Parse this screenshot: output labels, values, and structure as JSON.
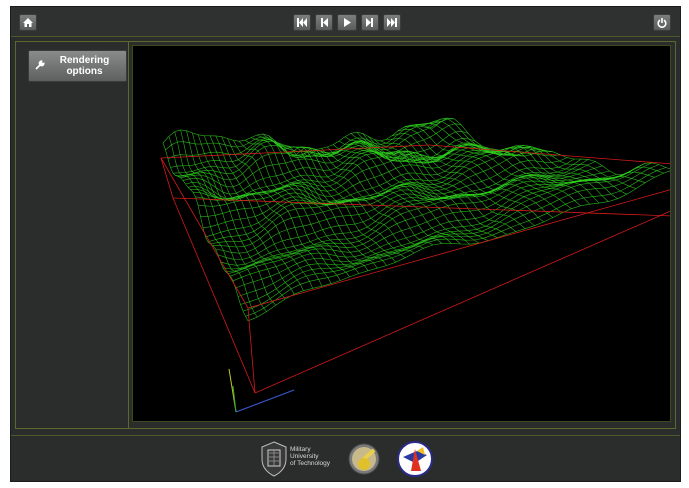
{
  "toolbar": {
    "home_icon": "home-icon",
    "transport": [
      "skip-to-start-icon",
      "step-back-icon",
      "play-icon",
      "step-forward-icon",
      "fast-forward-icon"
    ],
    "power_icon": "power-icon"
  },
  "sidebar": {
    "rendering_options_label": "Rendering\noptions"
  },
  "viewport": {
    "background": "#000000",
    "mesh_color": "#2fd21f",
    "bbox_color": "#d21a1a",
    "axes": {
      "x": "#3a5bd6",
      "y": "#c8c81e",
      "z": "#2fa82f"
    }
  },
  "footer": {
    "university_name_line1": "Military",
    "university_name_line2": "University",
    "university_name_line3": "of Technology"
  }
}
